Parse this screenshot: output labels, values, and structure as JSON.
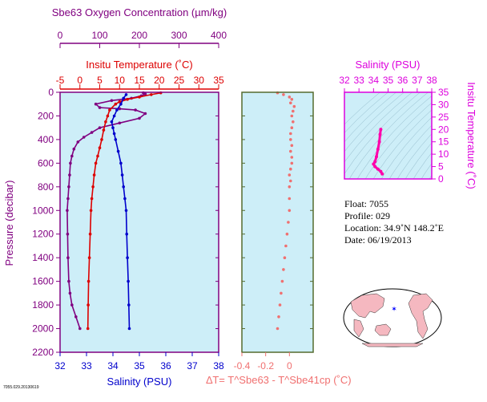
{
  "colors": {
    "oxygen": "#800080",
    "temperature": "#dd0000",
    "salinity": "#0000cc",
    "delta": "#f07070",
    "ts_axis": "#dd00dd",
    "ts_profile": "#ff00aa",
    "panel_bg": "#cdeef8",
    "pressure_axis": "#800080"
  },
  "chart_data": [
    {
      "type": "line",
      "panel": "profiles",
      "ylabel": "Pressure (decibar)",
      "ylim": [
        2200,
        0
      ],
      "yticks": [
        0,
        200,
        400,
        600,
        800,
        1000,
        1200,
        1400,
        1600,
        1800,
        2000,
        2200
      ],
      "axes": {
        "oxygen": {
          "label": "Sbe63 Oxygen Concentration (µm/kg)",
          "lim": [
            0,
            400
          ],
          "ticks": [
            0,
            100,
            200,
            300,
            400
          ]
        },
        "temperature": {
          "label": "Insitu Temperature (˚C)",
          "lim": [
            -5,
            35
          ],
          "ticks": [
            -5,
            0,
            5,
            10,
            15,
            20,
            25,
            30,
            35
          ]
        },
        "salinity": {
          "label": "Salinity (PSU)",
          "lim": [
            32,
            38
          ],
          "ticks": [
            32,
            33,
            34,
            35,
            36,
            37,
            38
          ]
        }
      },
      "series": [
        {
          "axis": "oxygen",
          "points": [
            [
              210,
              5
            ],
            [
              215,
              15
            ],
            [
              205,
              30
            ],
            [
              180,
              50
            ],
            [
              130,
              70
            ],
            [
              90,
              100
            ],
            [
              100,
              130
            ],
            [
              150,
              140
            ],
            [
              190,
              150
            ],
            [
              215,
              180
            ],
            [
              200,
              220
            ],
            [
              150,
              260
            ],
            [
              100,
              300
            ],
            [
              80,
              340
            ],
            [
              60,
              380
            ],
            [
              45,
              420
            ],
            [
              35,
              480
            ],
            [
              30,
              540
            ],
            [
              26,
              600
            ],
            [
              24,
              700
            ],
            [
              22,
              800
            ],
            [
              20,
              900
            ],
            [
              18,
              1000
            ],
            [
              19,
              1200
            ],
            [
              20,
              1400
            ],
            [
              22,
              1600
            ],
            [
              25,
              1700
            ],
            [
              30,
              1800
            ],
            [
              40,
              1900
            ],
            [
              50,
              2000
            ]
          ]
        },
        {
          "axis": "temperature",
          "points": [
            [
              20.4,
              5
            ],
            [
              18,
              20
            ],
            [
              15,
              40
            ],
            [
              12,
              60
            ],
            [
              10,
              80
            ],
            [
              9,
              100
            ],
            [
              7.5,
              150
            ],
            [
              7,
              200
            ],
            [
              6.5,
              250
            ],
            [
              6,
              320
            ],
            [
              5.5,
              400
            ],
            [
              5,
              470
            ],
            [
              4.5,
              540
            ],
            [
              4,
              600
            ],
            [
              3.6,
              700
            ],
            [
              3.3,
              800
            ],
            [
              3,
              900
            ],
            [
              2.8,
              1000
            ],
            [
              2.6,
              1200
            ],
            [
              2.4,
              1400
            ],
            [
              2.2,
              1600
            ],
            [
              2.1,
              1800
            ],
            [
              2,
              2000
            ]
          ]
        },
        {
          "axis": "salinity",
          "points": [
            [
              34.5,
              20
            ],
            [
              34.4,
              50
            ],
            [
              34.3,
              100
            ],
            [
              34.15,
              150
            ],
            [
              34.05,
              200
            ],
            [
              33.95,
              250
            ],
            [
              34.0,
              300
            ],
            [
              34.05,
              350
            ],
            [
              34.1,
              400
            ],
            [
              34.2,
              500
            ],
            [
              34.3,
              600
            ],
            [
              34.35,
              700
            ],
            [
              34.4,
              800
            ],
            [
              34.45,
              900
            ],
            [
              34.5,
              1000
            ],
            [
              34.52,
              1200
            ],
            [
              34.55,
              1400
            ],
            [
              34.58,
              1600
            ],
            [
              34.6,
              1800
            ],
            [
              34.62,
              2000
            ]
          ]
        }
      ]
    },
    {
      "type": "scatter",
      "panel": "delta",
      "xlabel": "∆T= T^Sbe63 - T^Sbe41cp (˚C)",
      "xlim": [
        -0.4,
        0.2
      ],
      "xticks": [
        -0.4,
        -0.2,
        0.0
      ],
      "ylim": [
        2200,
        0
      ],
      "points": [
        [
          -0.1,
          5
        ],
        [
          -0.05,
          20
        ],
        [
          0.0,
          40
        ],
        [
          0.02,
          60
        ],
        [
          0.01,
          90
        ],
        [
          0.04,
          120
        ],
        [
          0.03,
          160
        ],
        [
          0.02,
          200
        ],
        [
          0.03,
          250
        ],
        [
          0.02,
          300
        ],
        [
          0.01,
          350
        ],
        [
          0.01,
          400
        ],
        [
          0.02,
          450
        ],
        [
          0.01,
          500
        ],
        [
          0.02,
          550
        ],
        [
          0.02,
          600
        ],
        [
          0.01,
          650
        ],
        [
          0.0,
          700
        ],
        [
          0.01,
          750
        ],
        [
          0.0,
          800
        ],
        [
          0.0,
          900
        ],
        [
          0.0,
          1000
        ],
        [
          -0.01,
          1100
        ],
        [
          -0.02,
          1200
        ],
        [
          -0.03,
          1300
        ],
        [
          -0.04,
          1400
        ],
        [
          -0.05,
          1500
        ],
        [
          -0.06,
          1600
        ],
        [
          -0.07,
          1700
        ],
        [
          -0.08,
          1800
        ],
        [
          -0.09,
          1900
        ],
        [
          -0.1,
          2000
        ]
      ]
    },
    {
      "type": "line",
      "panel": "ts",
      "xlabel": "Salinity (PSU)",
      "ylabel": "Insitu Temperature (˚C)",
      "xlim": [
        32,
        38
      ],
      "ylim": [
        0,
        35
      ],
      "xticks": [
        32,
        33,
        34,
        35,
        36,
        37,
        38
      ],
      "yticks": [
        0,
        5,
        10,
        15,
        20,
        25,
        30,
        35
      ],
      "points": [
        [
          34.5,
          20
        ],
        [
          34.45,
          18
        ],
        [
          34.4,
          15
        ],
        [
          34.3,
          12
        ],
        [
          34.2,
          9
        ],
        [
          34.1,
          7
        ],
        [
          34.0,
          6
        ],
        [
          34.1,
          5
        ],
        [
          34.3,
          4
        ],
        [
          34.5,
          3
        ],
        [
          34.6,
          2
        ]
      ]
    }
  ],
  "info": {
    "float": "Float:  7055",
    "profile": "Profile:  029",
    "location": "Location:  34.9˚N  148.2˚E",
    "date": "Date:  06/19/2013"
  },
  "map": {
    "marker_lon": 148.2,
    "marker_lat": 34.9
  },
  "footer_code": "7055.029.20130619"
}
